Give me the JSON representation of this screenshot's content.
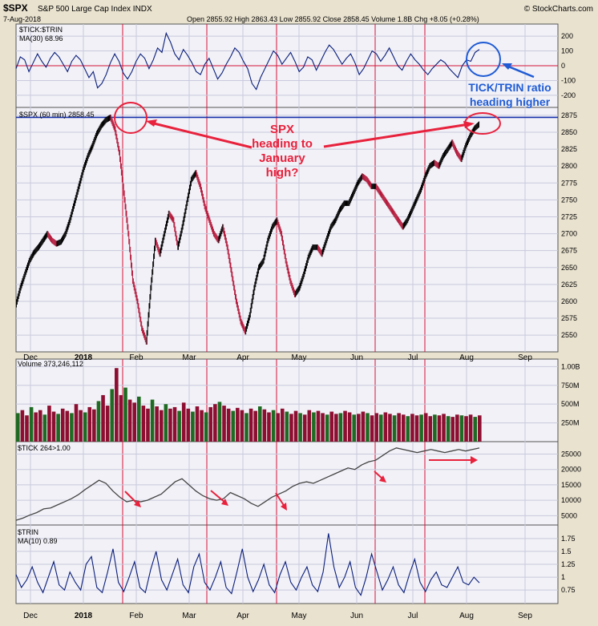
{
  "header": {
    "symbol": "$SPX",
    "name": "S&P 500 Large Cap Index INDX",
    "date": "7-Aug-2018",
    "stats": "Open 2855.92  High 2863.43  Low 2855.92  Close 2858.45  Volume 1.8B  Chg +8.05 (+0.28%)",
    "brand": "© StockCharts.com"
  },
  "colors": {
    "bg": "#e9e2cf",
    "panel": "#f1f1f7",
    "grid": "#c9c9dd",
    "tick_ratio": "#0a1e7a",
    "red_line": "#d8123a",
    "up_candle": "#000000",
    "down_candle": "#b4193b",
    "vol_up": "#1f6a22",
    "vol_down": "#8d0e30",
    "annotation_red": "#e8213c",
    "annotation_blue": "#1f5bd4"
  },
  "panels": {
    "ratio": {
      "label": "$TICK:$TRIN",
      "ma_label": "MA(30) 68.96"
    },
    "price": {
      "label": "$SPX (60 min) 2858.45"
    },
    "volume": {
      "label": "Volume 373,246,112"
    },
    "tick": {
      "label": "$TICK 264>1.00"
    },
    "trin": {
      "label": "$TRIN",
      "ma_label": "MA(10) 0.89"
    }
  },
  "annotations": {
    "spx_note": [
      "SPX",
      "heading to",
      "January",
      "high?"
    ],
    "ratio_note": [
      "TICK/TRIN ratio",
      "heading higher"
    ]
  },
  "chart_data": [
    {
      "type": "line",
      "panel": "TICK/TRIN ratio",
      "x_ticks": [
        "Dec",
        "2018",
        "Feb",
        "Mar",
        "Apr",
        "May",
        "Jun",
        "Jul",
        "Aug",
        "Sep"
      ],
      "y_ticks": [
        200,
        100,
        0,
        -100,
        -200
      ],
      "ylim": [
        -260,
        260
      ],
      "reference_line": 0,
      "series": [
        {
          "name": "MA(30) 68.96",
          "values": [
            -20,
            60,
            40,
            -40,
            20,
            80,
            30,
            -10,
            50,
            90,
            60,
            10,
            -40,
            30,
            70,
            40,
            -20,
            -80,
            -40,
            -150,
            -120,
            -60,
            20,
            80,
            30,
            -50,
            -90,
            -40,
            30,
            80,
            50,
            -20,
            40,
            120,
            90,
            220,
            160,
            80,
            40,
            110,
            70,
            20,
            -40,
            -60,
            10,
            50,
            -20,
            -90,
            -50,
            10,
            60,
            120,
            90,
            30,
            -20,
            -120,
            -160,
            -80,
            -20,
            40,
            100,
            70,
            10,
            50,
            90,
            30,
            -40,
            -10,
            60,
            40,
            -30,
            30,
            90,
            140,
            110,
            60,
            10,
            50,
            80,
            20,
            -60,
            -20,
            40,
            100,
            80,
            30,
            70,
            120,
            60,
            0,
            -30,
            30,
            80,
            40,
            10,
            -30,
            -60,
            -20,
            10,
            40,
            20,
            -20,
            -50,
            -80,
            0,
            40,
            30,
            90,
            110
          ]
        }
      ]
    },
    {
      "type": "candlestick",
      "panel": "$SPX (60 min)",
      "y_ticks": [
        2875,
        2850,
        2825,
        2800,
        2775,
        2750,
        2725,
        2700,
        2675,
        2650,
        2625,
        2600,
        2575,
        2550
      ],
      "ylim": [
        2530,
        2882
      ],
      "reference_line": 2872,
      "series": [
        {
          "name": "$SPX (60 min)",
          "values": [
            2595,
            2620,
            2640,
            2660,
            2672,
            2680,
            2690,
            2700,
            2690,
            2685,
            2688,
            2700,
            2720,
            2745,
            2770,
            2795,
            2815,
            2830,
            2848,
            2860,
            2868,
            2872,
            2855,
            2820,
            2760,
            2700,
            2630,
            2600,
            2560,
            2540,
            2620,
            2690,
            2670,
            2700,
            2730,
            2720,
            2680,
            2710,
            2745,
            2780,
            2790,
            2770,
            2740,
            2720,
            2700,
            2690,
            2710,
            2680,
            2640,
            2600,
            2570,
            2555,
            2580,
            2620,
            2650,
            2660,
            2690,
            2710,
            2720,
            2700,
            2660,
            2630,
            2610,
            2620,
            2640,
            2665,
            2680,
            2680,
            2670,
            2690,
            2710,
            2720,
            2735,
            2745,
            2745,
            2760,
            2775,
            2785,
            2780,
            2770,
            2770,
            2760,
            2750,
            2740,
            2730,
            2720,
            2710,
            2720,
            2735,
            2750,
            2765,
            2785,
            2800,
            2805,
            2800,
            2815,
            2825,
            2835,
            2820,
            2810,
            2830,
            2845,
            2856,
            2862
          ]
        }
      ]
    },
    {
      "type": "bar",
      "panel": "Volume",
      "y_ticks": [
        "1.00B",
        "750M",
        "500M",
        "250M"
      ],
      "series": [
        {
          "name": "Volume 373,246,112",
          "values": [
            380,
            420,
            350,
            460,
            390,
            420,
            360,
            480,
            400,
            370,
            440,
            410,
            380,
            500,
            420,
            390,
            460,
            430,
            540,
            620,
            480,
            700,
            980,
            620,
            720,
            560,
            520,
            600,
            480,
            440,
            560,
            470,
            420,
            500,
            440,
            460,
            410,
            520,
            440,
            400,
            470,
            420,
            390,
            460,
            500,
            530,
            480,
            440,
            410,
            450,
            420,
            380,
            440,
            410,
            470,
            430,
            390,
            420,
            380,
            440,
            400,
            370,
            410,
            380,
            360,
            420,
            390,
            410,
            380,
            360,
            400,
            370,
            380,
            410,
            390,
            360,
            370,
            400,
            380,
            350,
            380,
            360,
            390,
            370,
            350,
            380,
            360,
            340,
            370,
            350,
            360,
            380,
            340,
            360,
            350,
            370,
            340,
            330,
            360,
            350,
            340,
            360,
            330,
            350
          ]
        }
      ]
    },
    {
      "type": "line",
      "panel": "$TICK cumulative",
      "y_ticks": [
        25000,
        20000,
        15000,
        10000,
        5000
      ],
      "ylim": [
        3000,
        28000
      ],
      "series": [
        {
          "name": "$TICK 264>1.00",
          "values": [
            3500,
            4200,
            5200,
            6000,
            7200,
            7500,
            8500,
            9500,
            10500,
            11800,
            13500,
            15000,
            16500,
            15500,
            13000,
            11000,
            9500,
            10000,
            9500,
            10000,
            11000,
            12000,
            14000,
            16000,
            17000,
            15000,
            13000,
            11500,
            10500,
            10000,
            10500,
            12500,
            11500,
            10500,
            9000,
            8000,
            9500,
            11000,
            12000,
            13000,
            14500,
            15500,
            16000,
            15500,
            16500,
            17500,
            18500,
            19500,
            20500,
            20000,
            21500,
            22500,
            23000,
            24500,
            26000,
            27000,
            26500,
            26000,
            25500,
            26000,
            26500,
            26000,
            25500,
            26000,
            26500,
            26000,
            26500,
            27000
          ]
        }
      ]
    },
    {
      "type": "line",
      "panel": "$TRIN",
      "y_ticks": [
        1.75,
        1.5,
        1.25,
        1.0,
        0.75
      ],
      "ylim": [
        0.55,
        1.95
      ],
      "series": [
        {
          "name": "MA(10) 0.89",
          "values": [
            1.05,
            0.8,
            0.95,
            1.2,
            0.9,
            0.7,
            1.0,
            1.3,
            0.85,
            0.75,
            1.1,
            0.9,
            0.75,
            1.25,
            1.4,
            0.8,
            0.7,
            1.1,
            1.55,
            0.9,
            0.72,
            1.0,
            1.3,
            0.8,
            0.7,
            1.15,
            1.5,
            0.95,
            0.75,
            1.05,
            1.35,
            0.85,
            0.7,
            1.2,
            1.45,
            0.9,
            0.75,
            1.0,
            1.3,
            0.8,
            0.68,
            1.1,
            1.55,
            1.0,
            0.72,
            0.95,
            1.25,
            0.85,
            0.7,
            1.05,
            1.3,
            0.9,
            0.75,
            1.0,
            1.2,
            0.85,
            0.72,
            1.1,
            1.85,
            1.2,
            0.8,
            1.0,
            1.3,
            0.8,
            0.65,
            1.0,
            1.45,
            1.1,
            0.75,
            0.95,
            1.2,
            0.85,
            0.7,
            1.05,
            1.35,
            0.9,
            0.72,
            0.95,
            1.1,
            0.85,
            0.8,
            1.0,
            1.2,
            0.9,
            0.85,
            1.0,
            0.89
          ]
        }
      ]
    }
  ]
}
